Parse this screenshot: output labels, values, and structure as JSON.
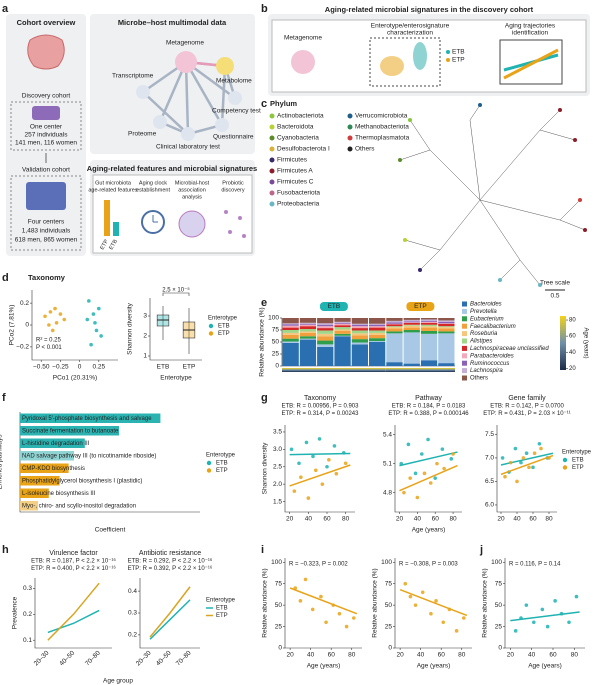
{
  "figure": {
    "letters": [
      "a",
      "b",
      "c",
      "d",
      "e",
      "f",
      "g",
      "h",
      "i",
      "j"
    ],
    "a": {
      "cohort_title": "Cohort overview",
      "discovery": "Discovery cohort",
      "disc_center": "One center",
      "disc_n": "257 individuals",
      "disc_sex": "141 men, 116 women",
      "validation": "Validation cohort",
      "val_center": "Four centers",
      "val_n": "1,483 individuals",
      "val_sex": "618 men, 865 women",
      "multimodal_title": "Microbe–host multimodal data",
      "nodes": [
        "Metagenome",
        "Metabolome",
        "Transcriptome",
        "Proteome",
        "Clinical laboratory test",
        "Questionnaire",
        "Competency test"
      ],
      "features_title": "Aging-related features and microbial signatures",
      "features": [
        [
          "Gut microbiota",
          "age-related features"
        ],
        [
          "Aging clock",
          "establishment"
        ],
        [
          "Microbial-host",
          "association",
          "analysis"
        ],
        [
          "Probiotic",
          "discovery"
        ]
      ],
      "mini_labels": [
        "ETP",
        "ETB"
      ]
    },
    "b": {
      "title": "Aging-related microbial signatures in the discovery cohort",
      "metagenome": "Metagenome",
      "step1": [
        "Enterotype/enterosignature",
        "characterization"
      ],
      "step2": [
        "Aging trajectories",
        "identification"
      ],
      "legend": [
        "ETB",
        "ETP"
      ]
    },
    "c": {
      "title": "Phylum",
      "phyla": [
        {
          "name": "Actinobacteriota",
          "color": "#8cc63f"
        },
        {
          "name": "Bacteroidota",
          "color": "#b5d334"
        },
        {
          "name": "Cyanobacteria",
          "color": "#5b8c2a"
        },
        {
          "name": "Desulfobacterota I",
          "color": "#d9b23a"
        },
        {
          "name": "Firmicutes",
          "color": "#3b2a6b"
        },
        {
          "name": "Firmicutes A",
          "color": "#8b1e2b"
        },
        {
          "name": "Firmicutes C",
          "color": "#7a4a9a"
        },
        {
          "name": "Fusobacteriota",
          "color": "#c0648a"
        },
        {
          "name": "Proteobacteria",
          "color": "#69b7c4"
        },
        {
          "name": "Verrucomicrobiota",
          "color": "#1f5f8b"
        },
        {
          "name": "Methanobacteriota",
          "color": "#2e8b57"
        },
        {
          "name": "Thermoplasmatota",
          "color": "#d23c3c"
        },
        {
          "name": "Others",
          "color": "#222222"
        }
      ],
      "tree_scale": "Tree scale",
      "tree_scale_value": "0.5"
    },
    "d": {
      "title": "Taxonomy"
    }
  },
  "chart_data": [
    {
      "type": "scatter",
      "xlabel": "PCo1 (20.31%)",
      "ylabel": "PCo2 (7.81%)",
      "xlim": [
        -0.62,
        0.5
      ],
      "ylim": [
        -0.32,
        0.32
      ],
      "xticks": [
        {
          "value": -0.5,
          "label": "−0.50"
        },
        {
          "value": -0.25,
          "label": "−0.25"
        },
        0,
        {
          "value": 0.25,
          "label": "0.25"
        }
      ],
      "yticks": [
        {
          "value": -0.2,
          "label": "−0.2"
        },
        0,
        0.2
      ],
      "notes": [
        "R² = 0.25",
        "P < 0.001"
      ],
      "series": [
        {
          "name": "ETB",
          "color": "#1fb3b1",
          "x": [
            0.12,
            0.18,
            0.22,
            0.15,
            0.25,
            0.2,
            0.1,
            0.28
          ],
          "y": [
            0.22,
            0.1,
            -0.05,
            -0.18,
            0.15,
            0.02,
            0.05,
            -0.1
          ]
        },
        {
          "name": "ETP",
          "color": "#e8a317",
          "x": [
            -0.45,
            -0.38,
            -0.3,
            -0.35,
            -0.25,
            -0.4,
            -0.2,
            -0.32
          ],
          "y": [
            0.08,
            0.12,
            0.02,
            -0.05,
            0.1,
            0.0,
            0.05,
            0.15
          ]
        }
      ]
    },
    {
      "type": "box",
      "ylabel": "Shannon diversity",
      "xlabel": "Enterotype",
      "categories": [
        "ETB",
        "ETP"
      ],
      "colors": [
        "#1fb3b1",
        "#e8a317"
      ],
      "ylim": [
        0.8,
        3.9
      ],
      "yticks": [
        1,
        2,
        3
      ],
      "notes": [
        "2.5 × 10⁻⁵"
      ],
      "stats": [
        {
          "whislo": 1.8,
          "q1": 2.5,
          "med": 2.8,
          "q3": 3.05,
          "whishi": 3.5
        },
        {
          "whislo": 1.1,
          "q1": 1.9,
          "med": 2.3,
          "q3": 2.7,
          "whishi": 3.4
        }
      ],
      "legend_title": "Enterotype",
      "legend": [
        {
          "name": "ETB",
          "color": "#1fb3b1"
        },
        {
          "name": "ETP",
          "color": "#e8a317"
        }
      ]
    },
    {
      "type": "stack",
      "ylabel": "Relative abundance (%)",
      "groups": [
        "ETB",
        "ETP"
      ],
      "ylim": [
        0,
        100
      ],
      "yticks": [
        0,
        25,
        50,
        75,
        100
      ],
      "categories": [
        null,
        null,
        null,
        null,
        null,
        null,
        null,
        null,
        null,
        null
      ],
      "colorbar": {
        "title": "Age (years)",
        "lim": [
          18,
          85
        ],
        "ticks": [
          20,
          40,
          60,
          80
        ]
      },
      "series": [
        {
          "name": "Bacteroides",
          "color": "#2a6fb0",
          "values": [
            48,
            55,
            40,
            62,
            45,
            50,
            8,
            5,
            12,
            6
          ]
        },
        {
          "name": "Prevotella",
          "color": "#a8c8e6",
          "values": [
            3,
            2,
            5,
            1,
            4,
            2,
            60,
            65,
            55,
            62
          ]
        },
        {
          "name": "Eubacterium",
          "color": "#2e9e4a",
          "values": [
            6,
            5,
            8,
            4,
            7,
            6,
            4,
            5,
            6,
            4
          ]
        },
        {
          "name": "Faecalibacterium",
          "color": "#f2a03d",
          "values": [
            8,
            7,
            9,
            6,
            8,
            7,
            6,
            5,
            7,
            6
          ]
        },
        {
          "name": "Roseburia",
          "color": "#f5c77e",
          "values": [
            4,
            3,
            5,
            3,
            4,
            4,
            3,
            4,
            3,
            3
          ]
        },
        {
          "name": "Alistipes",
          "color": "#9fd68a",
          "values": [
            6,
            5,
            7,
            5,
            6,
            5,
            2,
            2,
            3,
            2
          ]
        },
        {
          "name": "Lachnospiraceae unclassified",
          "color": "#d62728",
          "values": [
            5,
            6,
            5,
            4,
            5,
            6,
            4,
            4,
            4,
            5
          ]
        },
        {
          "name": "Parabacteroides",
          "color": "#f4a9b8",
          "values": [
            4,
            3,
            4,
            3,
            4,
            3,
            1,
            1,
            2,
            1
          ]
        },
        {
          "name": "Ruminococcus",
          "color": "#8a63b8",
          "values": [
            3,
            2,
            3,
            2,
            3,
            3,
            3,
            2,
            2,
            3
          ]
        },
        {
          "name": "Lachnospira",
          "color": "#c5b0d5",
          "values": [
            2,
            2,
            3,
            2,
            2,
            2,
            3,
            3,
            3,
            3
          ]
        },
        {
          "name": "Others",
          "color": "#8c564b",
          "values": [
            11,
            10,
            11,
            8,
            12,
            12,
            6,
            4,
            3,
            5
          ]
        }
      ]
    },
    {
      "type": "hbar",
      "ylabel": "Enriched pathways",
      "xlabel": "Coefficient",
      "xlim": [
        0,
        1
      ],
      "categories": [
        "Pyridoxal 5′-phosphate biosynthesis and salvage",
        "Succinate fermentation to butanoate",
        "L-histidine degradation III",
        "NAD salvage pathway III (to nicotinamide riboside)",
        "CMP-KDO biosynthesis",
        "Phosphatidylglycerol biosynthesis I (plastidic)",
        "L-isoleucine biosynthesis III",
        "Myo-, chiro- and scyllo-inositol degradation"
      ],
      "values": [
        0.78,
        0.55,
        0.36,
        0.3,
        0.27,
        0.22,
        0.16,
        0.1
      ],
      "colors": [
        "#2bb3b1",
        "#2bb3b1",
        "#2bb3b1",
        "#8fd3d2",
        "#e8a317",
        "#e8a317",
        "#e8a317",
        "#f3cf85"
      ],
      "legend_title": "Enterotype",
      "legend": [
        {
          "name": "ETB",
          "color": "#1fb3b1"
        },
        {
          "name": "ETP",
          "color": "#e8a317"
        }
      ]
    },
    {
      "type": "scatter",
      "title": "Taxonomy",
      "notes": [
        "ETB: R = 0.00956, P = 0.903",
        "ETP: R = 0.314, P = 0.00243"
      ],
      "ylabel": "Shannon diversity",
      "xlim": [
        15,
        90
      ],
      "ylim": [
        1.2,
        3.7
      ],
      "xticks": [
        20,
        40,
        60,
        80
      ],
      "yticks": [
        1.5,
        {
          "value": 2,
          "label": "2.0"
        },
        2.5,
        {
          "value": 3,
          "label": "3.0"
        },
        3.5
      ],
      "legend_title": "Enterotype",
      "legend": true,
      "series": [
        {
          "name": "ETB",
          "color": "#1fb3b1",
          "x": [
            22,
            30,
            38,
            45,
            52,
            60,
            68,
            78
          ],
          "y": [
            3.0,
            2.6,
            3.2,
            2.8,
            3.3,
            2.5,
            3.1,
            2.9
          ],
          "fit_x": [
            20,
            85
          ],
          "fit_y": [
            2.85,
            2.88
          ]
        },
        {
          "name": "ETP",
          "color": "#e8a317",
          "x": [
            25,
            32,
            40,
            48,
            55,
            62,
            70,
            80
          ],
          "y": [
            1.8,
            2.2,
            1.6,
            2.4,
            2.0,
            2.7,
            2.3,
            2.6
          ],
          "fit_x": [
            20,
            85
          ],
          "fit_y": [
            1.95,
            2.55
          ]
        }
      ]
    },
    {
      "type": "scatter",
      "title": "Pathway",
      "notes": [
        "ETB: R = 0.184, P = 0.0183",
        "ETP: R = 0.388, P = 0.000146"
      ],
      "xlabel": "Age (years)",
      "xlim": [
        15,
        90
      ],
      "ylim": [
        4.6,
        5.5
      ],
      "xticks": [
        20,
        40,
        60,
        80
      ],
      "yticks": [
        4.8,
        5.1,
        5.4
      ],
      "series": [
        {
          "name": "ETB",
          "color": "#1fb3b1",
          "x": [
            22,
            30,
            38,
            45,
            52,
            60,
            68,
            78
          ],
          "y": [
            5.1,
            5.3,
            5.0,
            5.2,
            5.35,
            4.95,
            5.25,
            5.15
          ],
          "fit_x": [
            20,
            85
          ],
          "fit_y": [
            5.08,
            5.22
          ]
        },
        {
          "name": "ETP",
          "color": "#e8a317",
          "x": [
            25,
            32,
            40,
            48,
            55,
            62,
            70,
            80
          ],
          "y": [
            4.8,
            4.95,
            4.75,
            5.0,
            4.9,
            5.1,
            5.05,
            5.2
          ],
          "fit_x": [
            20,
            85
          ],
          "fit_y": [
            4.82,
            5.08
          ]
        }
      ]
    },
    {
      "type": "scatter",
      "title": "Gene family",
      "notes": [
        "ETB: R = 0.142, P = 0.0700",
        "ETP: R = 0.431, P = 2.03 × 10⁻¹¹"
      ],
      "xlim": [
        15,
        90
      ],
      "ylim": [
        5.85,
        7.7
      ],
      "xticks": [
        20,
        40,
        60,
        80
      ],
      "yticks": [
        {
          "value": 6,
          "label": "6.0"
        },
        6.5,
        {
          "value": 7,
          "label": "7.0"
        },
        7.5
      ],
      "series": [
        {
          "name": "ETB",
          "color": "#1fb3b1",
          "x": [
            22,
            30,
            38,
            45,
            52,
            60,
            68,
            78
          ],
          "y": [
            7.0,
            6.7,
            7.2,
            6.9,
            7.1,
            6.8,
            7.3,
            7.0
          ],
          "fit_x": [
            20,
            85
          ],
          "fit_y": [
            6.85,
            7.1
          ]
        },
        {
          "name": "ETP",
          "color": "#e8a317",
          "x": [
            25,
            32,
            40,
            48,
            55,
            62,
            70,
            80
          ],
          "y": [
            6.6,
            6.9,
            6.5,
            7.0,
            6.8,
            7.1,
            7.2,
            7.0
          ],
          "fit_x": [
            20,
            85
          ],
          "fit_y": [
            6.65,
            7.05
          ]
        }
      ]
    },
    {
      "type": "line",
      "title": "Virulence factor",
      "notes": [
        "ETB: R = 0.187, P < 2.2 × 10⁻¹⁶",
        "ETP: R = 0.400, P < 2.2 × 10⁻¹⁶"
      ],
      "ylabel": "Prevalence",
      "xlabel": "Age group",
      "categories": [
        "20–30",
        "40–50",
        "70–80"
      ],
      "ylim": [
        0.07,
        0.34
      ],
      "yticks": [
        0.1,
        0.2,
        0.3
      ],
      "series": [
        {
          "name": "ETB",
          "color": "#1fb3b1",
          "values": [
            0.13,
            0.165,
            0.215
          ]
        },
        {
          "name": "ETP",
          "color": "#d9a520",
          "values": [
            0.1,
            0.2,
            0.32
          ]
        }
      ]
    },
    {
      "type": "line",
      "title": "Antibiotic resistance",
      "notes": [
        "ETB: R = 0.292, P < 2.2 × 10⁻¹⁶",
        "ETP: R = 0.392, P < 2.2 × 10⁻¹⁶"
      ],
      "categories": [
        "20–30",
        "40–50",
        "70–80"
      ],
      "ylim": [
        0.14,
        0.46
      ],
      "yticks": [
        0.2,
        0.3,
        0.4
      ],
      "legend_title": "Enterotype",
      "legend": true,
      "series": [
        {
          "name": "ETB",
          "color": "#1fb3b1",
          "values": [
            0.18,
            0.27,
            0.36
          ]
        },
        {
          "name": "ETP",
          "color": "#d9a520",
          "values": [
            0.19,
            0.3,
            0.42
          ]
        }
      ]
    },
    {
      "type": "scatter",
      "notes": [
        "R = −0.323, P = 0.002"
      ],
      "ylabel": "Relative abundance (%)",
      "xlabel": "Age (years)",
      "xlim": [
        15,
        90
      ],
      "ylim": [
        0,
        105
      ],
      "xticks": [
        20,
        40,
        60,
        80
      ],
      "yticks": [
        0,
        25,
        50,
        75,
        100
      ],
      "series": [
        {
          "name": "ETP",
          "color": "#e8a317",
          "x": [
            25,
            30,
            35,
            42,
            50,
            55,
            62,
            68,
            75,
            82
          ],
          "y": [
            70,
            55,
            80,
            45,
            60,
            30,
            50,
            40,
            25,
            35
          ],
          "fit_x": [
            20,
            85
          ],
          "fit_y": [
            70,
            40
          ]
        }
      ]
    },
    {
      "type": "scatter",
      "notes": [
        "R = −0.308, P = 0.003"
      ],
      "ylabel": "Relative abundance (%)",
      "xlabel": "Age (years)",
      "xlim": [
        15,
        90
      ],
      "ylim": [
        0,
        105
      ],
      "xticks": [
        20,
        40,
        60,
        80
      ],
      "yticks": [
        0,
        25,
        50,
        75,
        100
      ],
      "series": [
        {
          "name": "ETP",
          "color": "#e8a317",
          "x": [
            25,
            30,
            35,
            42,
            50,
            55,
            62,
            68,
            75,
            82
          ],
          "y": [
            75,
            60,
            50,
            65,
            40,
            55,
            30,
            45,
            20,
            35
          ],
          "fit_x": [
            20,
            85
          ],
          "fit_y": [
            68,
            38
          ]
        }
      ]
    },
    {
      "type": "scatter",
      "notes": [
        "R = 0.116, P = 0.14"
      ],
      "ylabel": "Relative abundance (%)",
      "xlabel": "Age (years)",
      "xlim": [
        15,
        90
      ],
      "ylim": [
        0,
        105
      ],
      "xticks": [
        20,
        40,
        60,
        80
      ],
      "yticks": [
        0,
        25,
        50,
        75,
        100
      ],
      "series": [
        {
          "name": "ETB",
          "color": "#1fb3b1",
          "x": [
            25,
            30,
            35,
            42,
            50,
            55,
            62,
            68,
            75,
            82
          ],
          "y": [
            20,
            35,
            50,
            30,
            45,
            25,
            55,
            40,
            30,
            60
          ],
          "fit_x": [
            20,
            85
          ],
          "fit_y": [
            32,
            42
          ]
        }
      ]
    }
  ]
}
